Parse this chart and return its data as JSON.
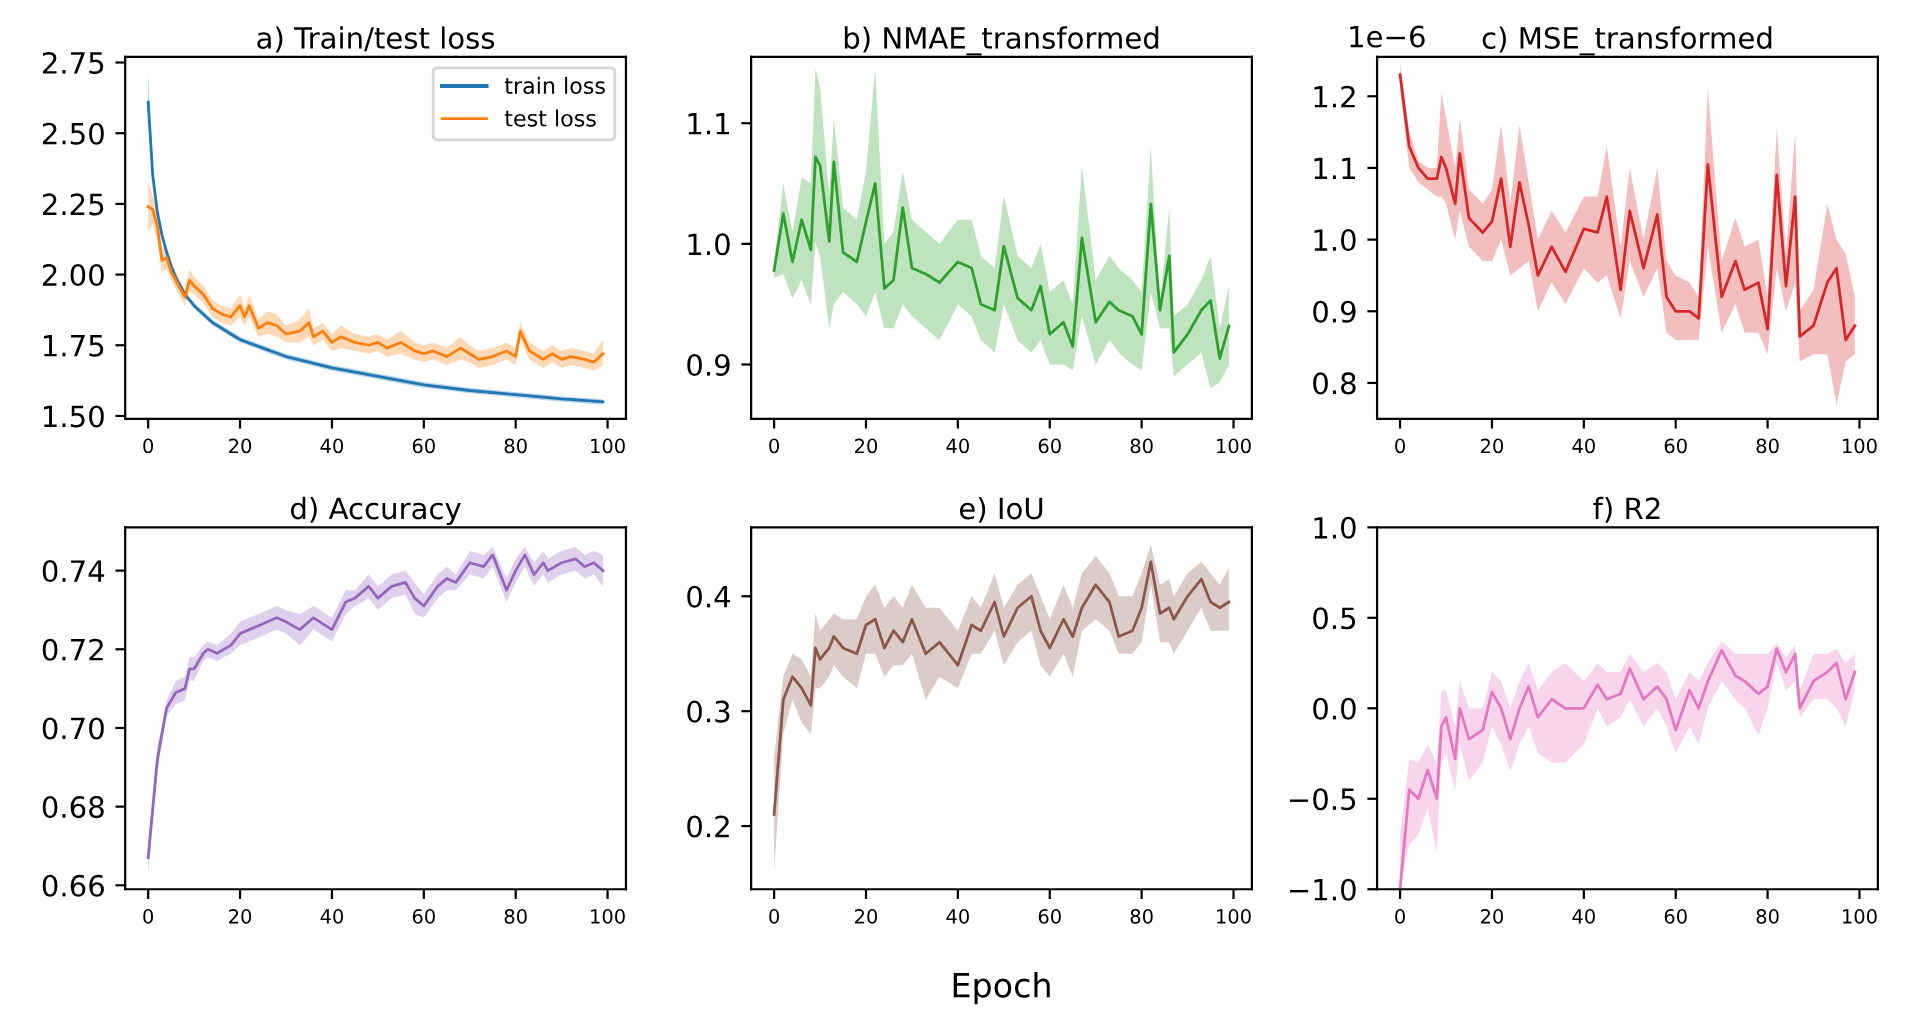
{
  "chart_data": [
    {
      "type": "line",
      "title": "a) Train/test loss",
      "legend": "top right",
      "xlim": [
        -5,
        104
      ],
      "xticks": [
        0,
        20,
        40,
        60,
        80,
        100
      ],
      "ylim": [
        1.49,
        2.77
      ],
      "yticks": [
        {
          "value": 1.5,
          "label": "1.50"
        },
        {
          "value": 1.75,
          "label": "1.75"
        },
        {
          "value": 2.0,
          "label": "2.00"
        },
        {
          "value": 2.25,
          "label": "2.25"
        },
        {
          "value": 2.5,
          "label": "2.50"
        },
        {
          "value": 2.75,
          "label": "2.75"
        }
      ],
      "series": [
        {
          "name": "train loss",
          "color": "#1f77b4",
          "x": [
            0,
            1,
            2,
            3,
            4,
            5,
            6,
            8,
            10,
            12,
            14,
            16,
            18,
            20,
            25,
            30,
            35,
            40,
            50,
            60,
            70,
            80,
            90,
            99
          ],
          "values": [
            2.61,
            2.35,
            2.22,
            2.14,
            2.08,
            2.03,
            1.99,
            1.93,
            1.89,
            1.86,
            1.83,
            1.81,
            1.79,
            1.77,
            1.74,
            1.71,
            1.69,
            1.67,
            1.64,
            1.61,
            1.59,
            1.575,
            1.56,
            1.55
          ],
          "lower": [
            2.55,
            2.33,
            2.21,
            2.13,
            2.07,
            2.02,
            1.98,
            1.92,
            1.88,
            1.85,
            1.82,
            1.8,
            1.78,
            1.76,
            1.73,
            1.7,
            1.68,
            1.66,
            1.63,
            1.6,
            1.58,
            1.565,
            1.55,
            1.54
          ],
          "upper": [
            2.72,
            2.37,
            2.23,
            2.15,
            2.09,
            2.04,
            2.0,
            1.94,
            1.9,
            1.87,
            1.84,
            1.82,
            1.8,
            1.78,
            1.75,
            1.72,
            1.7,
            1.68,
            1.65,
            1.62,
            1.6,
            1.585,
            1.57,
            1.56
          ]
        },
        {
          "name": "test loss",
          "color": "#ff7f0e",
          "x": [
            0,
            1,
            2,
            3,
            4,
            5,
            6,
            8,
            9,
            10,
            12,
            14,
            16,
            18,
            20,
            21,
            22,
            24,
            26,
            28,
            30,
            33,
            35,
            36,
            38,
            40,
            42,
            45,
            48,
            50,
            52,
            55,
            58,
            60,
            62,
            65,
            68,
            70,
            72,
            75,
            78,
            80,
            81,
            83,
            86,
            88,
            90,
            92,
            95,
            97,
            99
          ],
          "values": [
            2.24,
            2.23,
            2.17,
            2.05,
            2.06,
            2.01,
            1.98,
            1.92,
            1.98,
            1.96,
            1.93,
            1.88,
            1.86,
            1.85,
            1.89,
            1.85,
            1.89,
            1.81,
            1.83,
            1.82,
            1.79,
            1.8,
            1.83,
            1.78,
            1.8,
            1.76,
            1.78,
            1.76,
            1.75,
            1.76,
            1.74,
            1.76,
            1.73,
            1.72,
            1.73,
            1.71,
            1.74,
            1.72,
            1.7,
            1.71,
            1.73,
            1.71,
            1.8,
            1.73,
            1.7,
            1.72,
            1.7,
            1.71,
            1.7,
            1.69,
            1.72
          ],
          "lower": [
            2.15,
            2.18,
            2.12,
            2.01,
            2.02,
            1.98,
            1.95,
            1.89,
            1.94,
            1.93,
            1.9,
            1.85,
            1.83,
            1.82,
            1.85,
            1.82,
            1.85,
            1.78,
            1.79,
            1.78,
            1.76,
            1.76,
            1.78,
            1.75,
            1.77,
            1.73,
            1.74,
            1.73,
            1.72,
            1.73,
            1.71,
            1.72,
            1.7,
            1.69,
            1.7,
            1.68,
            1.7,
            1.69,
            1.67,
            1.68,
            1.7,
            1.68,
            1.77,
            1.7,
            1.67,
            1.69,
            1.67,
            1.68,
            1.67,
            1.66,
            1.68
          ],
          "upper": [
            2.33,
            2.28,
            2.22,
            2.09,
            2.1,
            2.05,
            2.01,
            1.95,
            2.02,
            1.99,
            1.96,
            1.91,
            1.89,
            1.88,
            1.93,
            1.88,
            1.93,
            1.84,
            1.87,
            1.86,
            1.82,
            1.84,
            1.88,
            1.81,
            1.83,
            1.79,
            1.82,
            1.79,
            1.78,
            1.79,
            1.77,
            1.8,
            1.76,
            1.75,
            1.76,
            1.74,
            1.78,
            1.75,
            1.73,
            1.74,
            1.76,
            1.74,
            1.83,
            1.76,
            1.73,
            1.75,
            1.73,
            1.74,
            1.73,
            1.72,
            1.77
          ]
        }
      ]
    },
    {
      "type": "line",
      "title": "b) NMAE_transformed",
      "xlim": [
        -5,
        104
      ],
      "xticks": [
        0,
        20,
        40,
        60,
        80,
        100
      ],
      "ylim": [
        0.855,
        1.155
      ],
      "yticks": [
        {
          "value": 0.9,
          "label": "0.9"
        },
        {
          "value": 1.0,
          "label": "1.0"
        },
        {
          "value": 1.1,
          "label": "1.1"
        }
      ],
      "x": [
        0,
        2,
        4,
        6,
        8,
        9,
        10,
        12,
        13,
        15,
        18,
        20,
        22,
        24,
        26,
        28,
        30,
        33,
        36,
        40,
        43,
        45,
        48,
        50,
        53,
        56,
        58,
        60,
        63,
        65,
        67,
        70,
        73,
        75,
        78,
        80,
        82,
        84,
        86,
        87,
        90,
        93,
        95,
        97,
        99
      ],
      "series": [
        {
          "color": "#2ca02c",
          "values": [
            0.978,
            1.025,
            0.985,
            1.02,
            0.995,
            1.072,
            1.065,
            1.002,
            1.068,
            0.993,
            0.985,
            1.018,
            1.05,
            0.963,
            0.97,
            1.03,
            0.98,
            0.975,
            0.968,
            0.985,
            0.98,
            0.95,
            0.945,
            0.998,
            0.955,
            0.945,
            0.965,
            0.925,
            0.935,
            0.915,
            1.005,
            0.935,
            0.952,
            0.945,
            0.94,
            0.925,
            1.033,
            0.945,
            0.99,
            0.91,
            0.925,
            0.945,
            0.953,
            0.905,
            0.932
          ],
          "lower": [
            0.972,
            0.975,
            0.955,
            0.97,
            0.95,
            1.0,
            0.99,
            0.93,
            0.95,
            0.96,
            0.95,
            0.94,
            0.96,
            0.93,
            0.93,
            0.95,
            0.94,
            0.93,
            0.92,
            0.95,
            0.94,
            0.92,
            0.91,
            0.95,
            0.92,
            0.91,
            0.92,
            0.9,
            0.9,
            0.895,
            0.94,
            0.9,
            0.92,
            0.91,
            0.9,
            0.895,
            0.96,
            0.93,
            0.93,
            0.89,
            0.9,
            0.91,
            0.88,
            0.885,
            0.9
          ],
          "upper": [
            0.985,
            1.05,
            1.01,
            1.055,
            1.05,
            1.145,
            1.13,
            1.04,
            1.105,
            1.03,
            1.02,
            1.06,
            1.145,
            1.0,
            1.01,
            1.06,
            1.02,
            1.01,
            1.0,
            1.02,
            1.02,
            0.99,
            0.98,
            1.04,
            0.99,
            0.98,
            1.0,
            0.96,
            0.97,
            0.95,
            1.065,
            0.97,
            0.99,
            0.98,
            0.97,
            0.96,
            1.08,
            0.95,
            1.03,
            0.94,
            0.95,
            0.97,
            0.99,
            0.93,
            0.965
          ]
        }
      ]
    },
    {
      "type": "line",
      "title": "c) MSE_transformed",
      "annotations": [
        "1e−6"
      ],
      "xlim": [
        -5,
        104
      ],
      "xticks": [
        0,
        20,
        40,
        60,
        80,
        100
      ],
      "ylim": [
        0.75,
        1.255
      ],
      "yticks": [
        {
          "value": 0.8,
          "label": "0.8"
        },
        {
          "value": 0.9,
          "label": "0.9"
        },
        {
          "value": 1.0,
          "label": "1.0"
        },
        {
          "value": 1.1,
          "label": "1.1"
        },
        {
          "value": 1.2,
          "label": "1.2"
        }
      ],
      "x": [
        0,
        2,
        4,
        6,
        8,
        9,
        10,
        12,
        13,
        15,
        18,
        20,
        22,
        24,
        26,
        28,
        30,
        33,
        36,
        40,
        43,
        45,
        48,
        50,
        53,
        56,
        58,
        60,
        63,
        65,
        67,
        70,
        73,
        75,
        78,
        80,
        82,
        84,
        86,
        87,
        90,
        93,
        95,
        97,
        99
      ],
      "series": [
        {
          "color": "#d62728",
          "values": [
            1.23,
            1.13,
            1.1,
            1.085,
            1.085,
            1.115,
            1.1,
            1.05,
            1.12,
            1.03,
            1.01,
            1.025,
            1.085,
            0.99,
            1.08,
            1.02,
            0.95,
            0.99,
            0.955,
            1.015,
            1.01,
            1.06,
            0.93,
            1.04,
            0.96,
            1.035,
            0.92,
            0.9,
            0.9,
            0.89,
            1.105,
            0.92,
            0.97,
            0.93,
            0.94,
            0.875,
            1.09,
            0.935,
            1.06,
            0.865,
            0.88,
            0.94,
            0.96,
            0.86,
            0.88
          ],
          "lower": [
            1.21,
            1.1,
            1.08,
            1.07,
            1.06,
            1.06,
            1.05,
            1.0,
            1.04,
            0.99,
            0.97,
            0.97,
            1.0,
            0.95,
            0.96,
            0.97,
            0.9,
            0.94,
            0.91,
            0.96,
            0.94,
            0.95,
            0.89,
            0.97,
            0.92,
            0.96,
            0.87,
            0.86,
            0.86,
            0.86,
            0.99,
            0.87,
            0.91,
            0.87,
            0.87,
            0.84,
            0.96,
            0.9,
            0.94,
            0.83,
            0.84,
            0.84,
            0.77,
            0.83,
            0.84
          ],
          "upper": [
            1.245,
            1.15,
            1.11,
            1.1,
            1.1,
            1.205,
            1.17,
            1.1,
            1.17,
            1.07,
            1.05,
            1.07,
            1.16,
            1.05,
            1.16,
            1.08,
            1.0,
            1.04,
            1.01,
            1.06,
            1.06,
            1.13,
            0.99,
            1.1,
            1.0,
            1.1,
            0.97,
            0.95,
            0.94,
            0.92,
            1.21,
            0.97,
            1.03,
            0.99,
            1.0,
            0.92,
            1.155,
            0.98,
            1.15,
            0.9,
            0.93,
            1.05,
            1.0,
            0.98,
            0.92
          ]
        }
      ]
    },
    {
      "type": "line",
      "title": "d) Accuracy",
      "xlim": [
        -5,
        104
      ],
      "xticks": [
        0,
        20,
        40,
        60,
        80,
        100
      ],
      "ylim": [
        0.659,
        0.751
      ],
      "yticks": [
        {
          "value": 0.66,
          "label": "0.66"
        },
        {
          "value": 0.68,
          "label": "0.68"
        },
        {
          "value": 0.7,
          "label": "0.70"
        },
        {
          "value": 0.72,
          "label": "0.72"
        },
        {
          "value": 0.74,
          "label": "0.74"
        }
      ],
      "x": [
        0,
        2,
        4,
        6,
        8,
        9,
        10,
        12,
        13,
        15,
        18,
        20,
        22,
        24,
        26,
        28,
        30,
        33,
        36,
        40,
        43,
        45,
        48,
        50,
        53,
        56,
        58,
        60,
        63,
        65,
        67,
        70,
        73,
        75,
        78,
        80,
        82,
        84,
        86,
        87,
        90,
        93,
        95,
        97,
        99
      ],
      "series": [
        {
          "color": "#9467bd",
          "values": [
            0.667,
            0.692,
            0.705,
            0.709,
            0.71,
            0.715,
            0.715,
            0.719,
            0.72,
            0.719,
            0.721,
            0.724,
            0.725,
            0.726,
            0.727,
            0.728,
            0.727,
            0.725,
            0.728,
            0.725,
            0.732,
            0.733,
            0.736,
            0.733,
            0.736,
            0.737,
            0.733,
            0.731,
            0.736,
            0.738,
            0.737,
            0.742,
            0.741,
            0.744,
            0.735,
            0.74,
            0.744,
            0.739,
            0.742,
            0.74,
            0.742,
            0.743,
            0.741,
            0.742,
            0.74
          ],
          "lower": [
            0.663,
            0.689,
            0.703,
            0.706,
            0.707,
            0.712,
            0.712,
            0.717,
            0.718,
            0.717,
            0.719,
            0.721,
            0.722,
            0.723,
            0.724,
            0.725,
            0.724,
            0.721,
            0.725,
            0.722,
            0.729,
            0.731,
            0.733,
            0.73,
            0.733,
            0.734,
            0.729,
            0.728,
            0.733,
            0.735,
            0.735,
            0.739,
            0.738,
            0.741,
            0.732,
            0.737,
            0.741,
            0.736,
            0.739,
            0.737,
            0.739,
            0.74,
            0.738,
            0.739,
            0.736
          ],
          "upper": [
            0.67,
            0.695,
            0.707,
            0.712,
            0.713,
            0.718,
            0.718,
            0.721,
            0.722,
            0.721,
            0.724,
            0.727,
            0.728,
            0.729,
            0.73,
            0.731,
            0.73,
            0.729,
            0.731,
            0.728,
            0.735,
            0.735,
            0.739,
            0.736,
            0.739,
            0.74,
            0.737,
            0.734,
            0.739,
            0.741,
            0.739,
            0.745,
            0.744,
            0.746,
            0.738,
            0.743,
            0.746,
            0.742,
            0.745,
            0.743,
            0.745,
            0.746,
            0.744,
            0.745,
            0.744
          ]
        }
      ]
    },
    {
      "type": "line",
      "title": "e) IoU",
      "xlabel": "Epoch",
      "xlim": [
        -5,
        104
      ],
      "xticks": [
        0,
        20,
        40,
        60,
        80,
        100
      ],
      "ylim": [
        0.145,
        0.46
      ],
      "yticks": [
        {
          "value": 0.2,
          "label": "0.2"
        },
        {
          "value": 0.3,
          "label": "0.3"
        },
        {
          "value": 0.4,
          "label": "0.4"
        }
      ],
      "x": [
        0,
        2,
        4,
        6,
        8,
        9,
        10,
        12,
        13,
        15,
        18,
        20,
        22,
        24,
        26,
        28,
        30,
        33,
        36,
        40,
        43,
        45,
        48,
        50,
        53,
        56,
        58,
        60,
        63,
        65,
        67,
        70,
        73,
        75,
        78,
        80,
        82,
        84,
        86,
        87,
        90,
        93,
        95,
        97,
        99
      ],
      "series": [
        {
          "color": "#8c564b",
          "values": [
            0.21,
            0.31,
            0.33,
            0.32,
            0.305,
            0.355,
            0.345,
            0.355,
            0.365,
            0.355,
            0.35,
            0.375,
            0.38,
            0.355,
            0.37,
            0.36,
            0.38,
            0.35,
            0.36,
            0.34,
            0.375,
            0.37,
            0.395,
            0.365,
            0.39,
            0.4,
            0.37,
            0.355,
            0.38,
            0.365,
            0.39,
            0.41,
            0.395,
            0.365,
            0.37,
            0.39,
            0.43,
            0.385,
            0.39,
            0.38,
            0.4,
            0.415,
            0.395,
            0.39,
            0.395
          ],
          "lower": [
            0.16,
            0.28,
            0.31,
            0.29,
            0.28,
            0.32,
            0.32,
            0.33,
            0.34,
            0.33,
            0.32,
            0.35,
            0.35,
            0.33,
            0.34,
            0.34,
            0.35,
            0.31,
            0.33,
            0.32,
            0.35,
            0.35,
            0.37,
            0.34,
            0.36,
            0.37,
            0.34,
            0.33,
            0.35,
            0.33,
            0.37,
            0.38,
            0.37,
            0.35,
            0.35,
            0.36,
            0.41,
            0.36,
            0.36,
            0.35,
            0.37,
            0.39,
            0.37,
            0.37,
            0.37
          ],
          "upper": [
            0.26,
            0.33,
            0.35,
            0.345,
            0.33,
            0.385,
            0.37,
            0.38,
            0.385,
            0.38,
            0.38,
            0.4,
            0.41,
            0.39,
            0.4,
            0.39,
            0.41,
            0.39,
            0.39,
            0.37,
            0.4,
            0.39,
            0.42,
            0.39,
            0.41,
            0.42,
            0.4,
            0.38,
            0.41,
            0.39,
            0.42,
            0.435,
            0.42,
            0.4,
            0.4,
            0.42,
            0.445,
            0.41,
            0.415,
            0.4,
            0.42,
            0.43,
            0.42,
            0.41,
            0.425
          ]
        }
      ]
    },
    {
      "type": "line",
      "title": "f) R2",
      "xlim": [
        -5,
        104
      ],
      "xticks": [
        0,
        20,
        40,
        60,
        80,
        100
      ],
      "ylim": [
        -1.0,
        1.0
      ],
      "yticks": [
        {
          "value": -1.0,
          "label": "−1.0"
        },
        {
          "value": -0.5,
          "label": "−0.5"
        },
        {
          "value": 0.0,
          "label": "0.0"
        },
        {
          "value": 0.5,
          "label": "0.5"
        },
        {
          "value": 1.0,
          "label": "1.0"
        }
      ],
      "x": [
        0,
        2,
        4,
        6,
        8,
        9,
        10,
        12,
        13,
        15,
        18,
        20,
        22,
        24,
        26,
        28,
        30,
        33,
        36,
        40,
        43,
        45,
        48,
        50,
        53,
        56,
        58,
        60,
        63,
        65,
        67,
        70,
        73,
        75,
        78,
        80,
        82,
        84,
        86,
        87,
        90,
        93,
        95,
        97,
        99
      ],
      "series": [
        {
          "color": "#e377c2",
          "values": [
            -1.0,
            -0.45,
            -0.5,
            -0.34,
            -0.5,
            -0.1,
            -0.05,
            -0.28,
            0.0,
            -0.17,
            -0.12,
            0.09,
            0.0,
            -0.17,
            0.0,
            0.12,
            -0.05,
            0.05,
            0.0,
            0.0,
            0.13,
            0.05,
            0.08,
            0.22,
            0.05,
            0.12,
            0.05,
            -0.12,
            0.1,
            0.0,
            0.15,
            0.32,
            0.18,
            0.15,
            0.08,
            0.12,
            0.33,
            0.2,
            0.3,
            0.0,
            0.15,
            0.2,
            0.25,
            0.05,
            0.2
          ],
          "lower": [
            -1.0,
            -0.75,
            -0.7,
            -0.55,
            -0.8,
            -0.3,
            -0.25,
            -0.45,
            -0.2,
            -0.4,
            -0.3,
            -0.1,
            -0.2,
            -0.35,
            -0.2,
            -0.1,
            -0.25,
            -0.3,
            -0.3,
            -0.2,
            0.0,
            -0.1,
            -0.05,
            0.05,
            -0.1,
            0.0,
            -0.1,
            -0.25,
            -0.1,
            -0.2,
            0.0,
            0.15,
            0.05,
            0.0,
            -0.15,
            0.0,
            0.25,
            0.1,
            0.15,
            -0.05,
            0.05,
            0.05,
            0.0,
            -0.1,
            0.1
          ],
          "upper": [
            -0.7,
            -0.28,
            -0.3,
            -0.2,
            -0.3,
            0.1,
            0.1,
            -0.1,
            0.15,
            0.0,
            0.0,
            0.2,
            0.15,
            0.0,
            0.15,
            0.25,
            0.1,
            0.2,
            0.25,
            0.15,
            0.25,
            0.2,
            0.2,
            0.3,
            0.2,
            0.25,
            0.2,
            0.05,
            0.2,
            0.15,
            0.25,
            0.37,
            0.3,
            0.3,
            0.3,
            0.3,
            0.36,
            0.28,
            0.35,
            0.1,
            0.3,
            0.3,
            0.33,
            0.25,
            0.3
          ]
        }
      ]
    }
  ]
}
